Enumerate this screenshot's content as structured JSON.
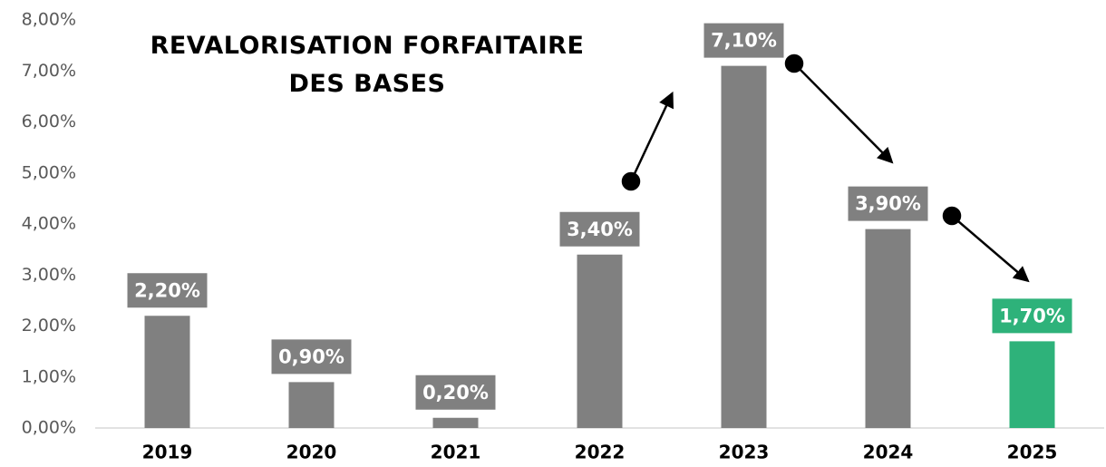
{
  "chart_data": {
    "type": "bar",
    "title": "REVALORISATION FORFAITAIRE DES BASES",
    "categories": [
      "2019",
      "2020",
      "2021",
      "2022",
      "2023",
      "2024",
      "2025"
    ],
    "values": [
      2.2,
      0.9,
      0.2,
      3.4,
      7.1,
      3.9,
      1.7
    ],
    "value_labels": [
      "2,20%",
      "0,90%",
      "0,20%",
      "3,40%",
      "7,10%",
      "3,90%",
      "1,70%"
    ],
    "colors": [
      "#808080",
      "#808080",
      "#808080",
      "#808080",
      "#808080",
      "#808080",
      "#2eb27a"
    ],
    "ylim": [
      0,
      8
    ],
    "yticks": [
      {
        "value": 0,
        "label": "0,00%"
      },
      {
        "value": 1,
        "label": "1,00%"
      },
      {
        "value": 2,
        "label": "2,00%"
      },
      {
        "value": 3,
        "label": "3,00%"
      },
      {
        "value": 4,
        "label": "4,00%"
      },
      {
        "value": 5,
        "label": "5,00%"
      },
      {
        "value": 6,
        "label": "6,00%"
      },
      {
        "value": 7,
        "label": "7,00%"
      },
      {
        "value": 8,
        "label": "8,00%"
      }
    ],
    "grid": false
  }
}
